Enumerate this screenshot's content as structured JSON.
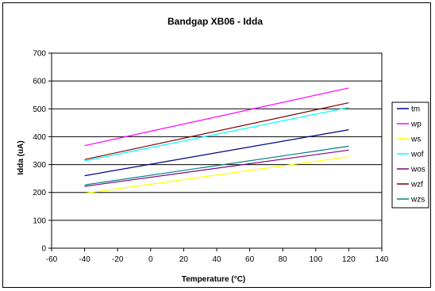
{
  "chart_data": {
    "type": "line",
    "title": "Bandgap XB06 - Idda",
    "xlabel": "Temperature (°C)",
    "ylabel": "Idda (uA)",
    "xlim": [
      -60,
      140
    ],
    "ylim": [
      0,
      700
    ],
    "xticks": [
      -60,
      -40,
      -20,
      0,
      20,
      40,
      60,
      80,
      100,
      120,
      140
    ],
    "yticks": [
      0,
      100,
      200,
      300,
      400,
      500,
      600,
      700
    ],
    "grid": "horizontal",
    "legend_position": "right",
    "x": [
      -40,
      120
    ],
    "series": [
      {
        "name": "tm",
        "color": "#000080",
        "values": [
          260,
          425
        ]
      },
      {
        "name": "wp",
        "color": "#ff00ff",
        "values": [
          368,
          575
        ]
      },
      {
        "name": "ws",
        "color": "#ffff00",
        "values": [
          197,
          328
        ]
      },
      {
        "name": "wof",
        "color": "#00ffff",
        "values": [
          313,
          505
        ]
      },
      {
        "name": "wos",
        "color": "#800080",
        "values": [
          222,
          352
        ]
      },
      {
        "name": "wzf",
        "color": "#800000",
        "values": [
          318,
          522
        ]
      },
      {
        "name": "wzs",
        "color": "#008080",
        "values": [
          227,
          366
        ]
      }
    ]
  }
}
